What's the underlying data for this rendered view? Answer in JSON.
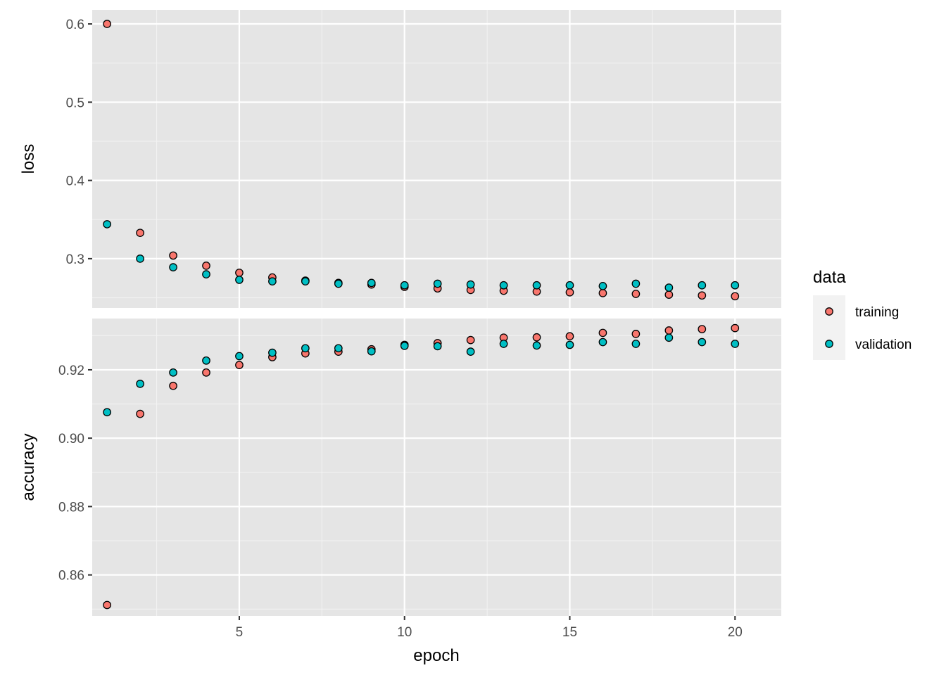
{
  "chart_data": {
    "type": "scatter",
    "xlabel": "epoch",
    "x": [
      1,
      2,
      3,
      4,
      5,
      6,
      7,
      8,
      9,
      10,
      11,
      12,
      13,
      14,
      15,
      16,
      17,
      18,
      19,
      20
    ],
    "xlim": [
      0.55,
      21.4
    ],
    "xticks": [
      5,
      10,
      15,
      20
    ],
    "legend": {
      "title": "data",
      "position": "right"
    },
    "colors": {
      "training": "#f8766d",
      "validation": "#00bfc4"
    },
    "panel_background": "#e5e5e5",
    "grid": true,
    "panels": [
      {
        "ylabel": "loss",
        "ylim": [
          0.237,
          0.618
        ],
        "yticks": [
          0.3,
          0.4,
          0.5,
          0.6
        ],
        "ytick_labels": [
          "0.3",
          "0.4",
          "0.5",
          "0.6"
        ],
        "series": [
          {
            "name": "training",
            "values": [
              0.6,
              0.333,
              0.304,
              0.291,
              0.282,
              0.276,
              0.272,
              0.269,
              0.267,
              0.264,
              0.262,
              0.26,
              0.259,
              0.258,
              0.257,
              0.256,
              0.255,
              0.254,
              0.253,
              0.252
            ]
          },
          {
            "name": "validation",
            "values": [
              0.344,
              0.3,
              0.289,
              0.28,
              0.273,
              0.271,
              0.271,
              0.268,
              0.269,
              0.266,
              0.268,
              0.267,
              0.266,
              0.266,
              0.266,
              0.265,
              0.268,
              0.263,
              0.266,
              0.266
            ]
          }
        ]
      },
      {
        "ylabel": "accuracy",
        "ylim": [
          0.848,
          0.935
        ],
        "yticks": [
          0.86,
          0.88,
          0.9,
          0.92
        ],
        "ytick_labels": [
          "0.86",
          "0.88",
          "0.90",
          "0.92"
        ],
        "series": [
          {
            "name": "training",
            "values": [
              0.8512,
              0.9071,
              0.9153,
              0.9192,
              0.9214,
              0.9237,
              0.9248,
              0.9253,
              0.926,
              0.9273,
              0.9278,
              0.9287,
              0.9294,
              0.9295,
              0.9298,
              0.9308,
              0.9305,
              0.9315,
              0.9319,
              0.9322
            ]
          },
          {
            "name": "validation",
            "values": [
              0.9076,
              0.9159,
              0.9192,
              0.9227,
              0.924,
              0.925,
              0.9263,
              0.9263,
              0.9254,
              0.927,
              0.9269,
              0.9253,
              0.9276,
              0.9271,
              0.9273,
              0.9281,
              0.9276,
              0.9294,
              0.9281,
              0.9276
            ]
          }
        ]
      }
    ]
  }
}
